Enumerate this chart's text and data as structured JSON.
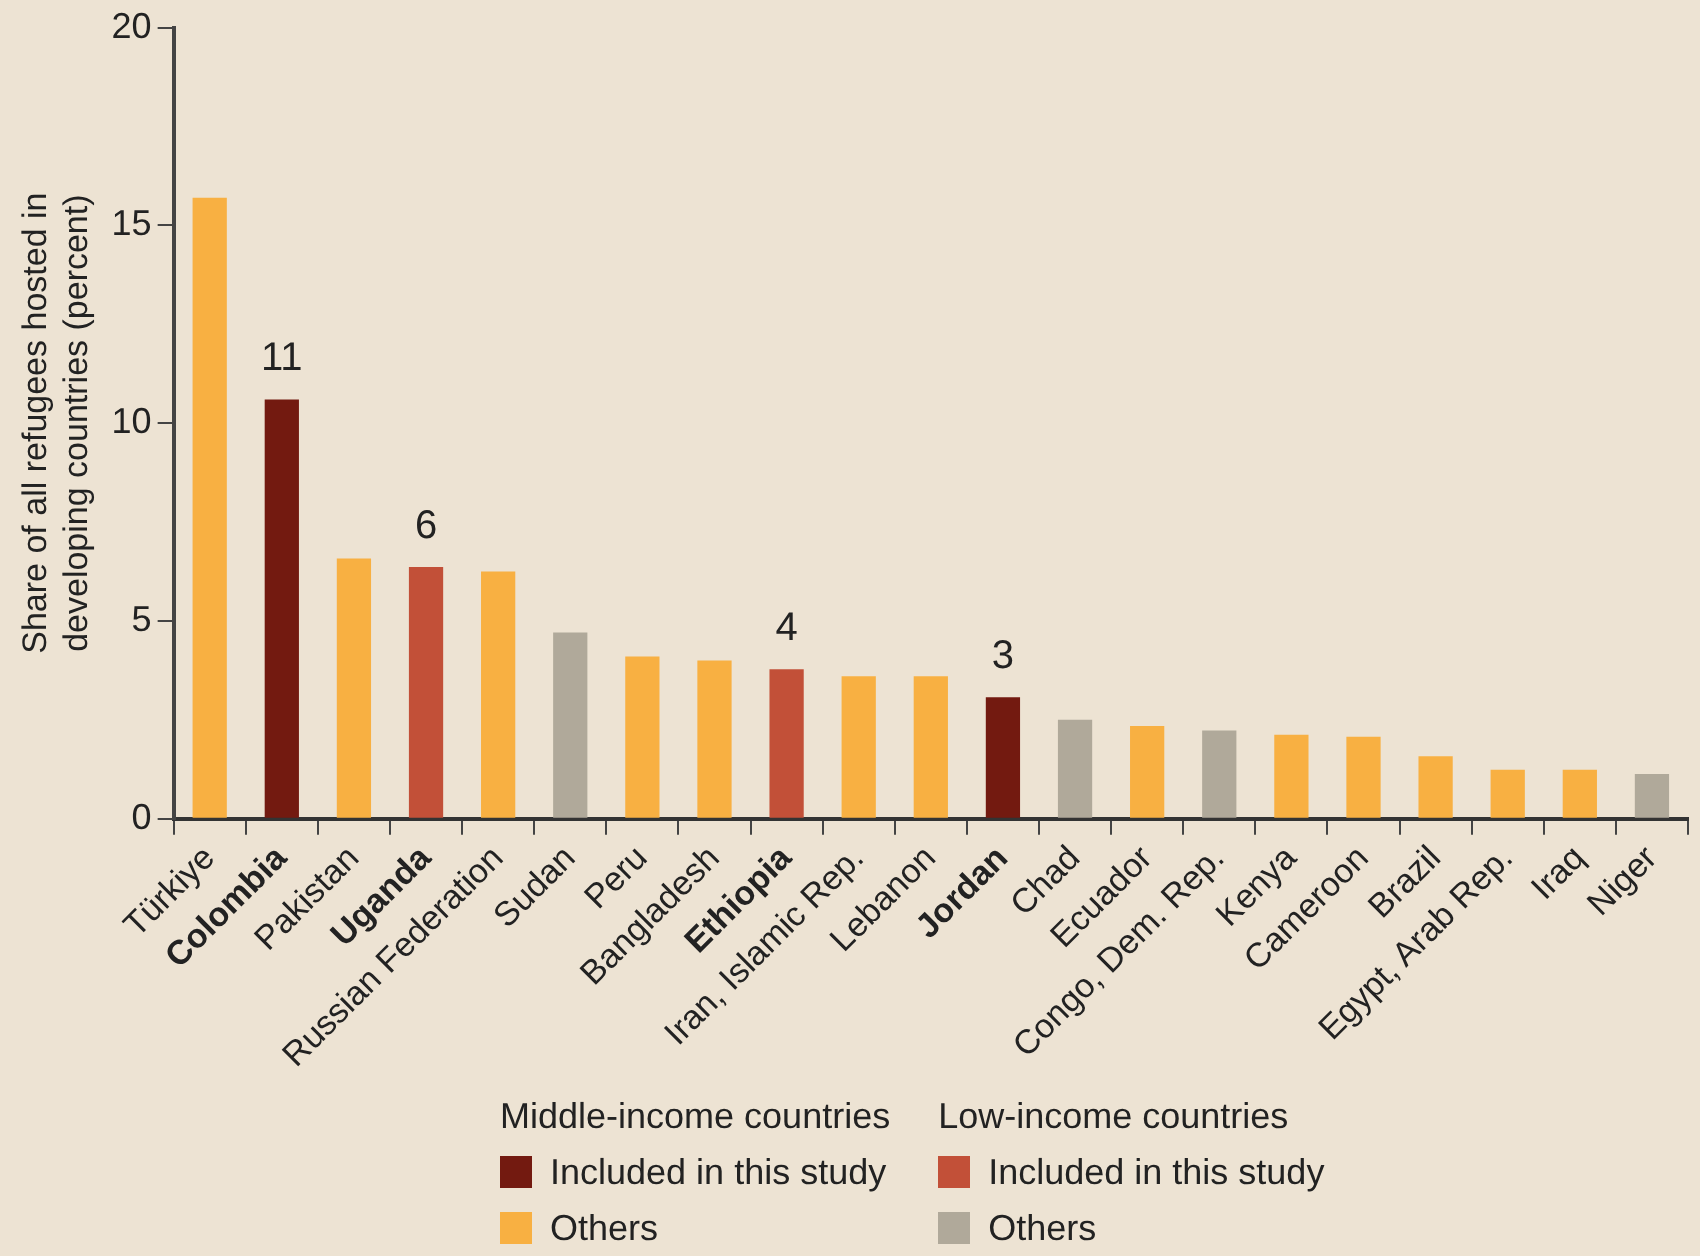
{
  "chart_data": {
    "type": "bar",
    "ylabel": "Share of all refugees hosted in developing countries (percent)",
    "categories": [
      "Türkiye",
      "Colombia",
      "Pakistan",
      "Uganda",
      "Russian Federation",
      "Sudan",
      "Peru",
      "Bangladesh",
      "Ethiopia",
      "Iran, Islamic Rep.",
      "Lebanon",
      "Jordan",
      "Chad",
      "Ecuador",
      "Congo, Dem. Rep.",
      "Kenya",
      "Cameroon",
      "Brazil",
      "Egypt, Arab Rep.",
      "Iraq",
      "Niger"
    ],
    "stacked": true,
    "series": [
      {
        "name": "Included in this study",
        "color": "#731a10",
        "values": [
          null,
          10.6,
          null,
          null,
          null,
          null,
          null,
          null,
          null,
          null,
          null,
          3.07,
          null,
          null,
          null,
          null,
          null,
          null,
          null,
          null,
          null
        ],
        "value_labels": [
          null,
          "11",
          null,
          null,
          null,
          null,
          null,
          null,
          null,
          null,
          null,
          "3",
          null,
          null,
          null,
          null,
          null,
          null,
          null,
          null,
          null
        ]
      },
      {
        "name": "Others",
        "color": "#f8b042",
        "values": [
          15.7,
          null,
          6.58,
          null,
          6.25,
          null,
          4.1,
          4.0,
          null,
          3.6,
          3.6,
          null,
          null,
          2.34,
          null,
          2.12,
          2.07,
          1.58,
          1.24,
          1.24,
          null
        ]
      },
      {
        "name": "Included in this study",
        "color": "#c25038",
        "values": [
          null,
          null,
          null,
          6.36,
          null,
          null,
          null,
          null,
          3.78,
          null,
          null,
          null,
          null,
          null,
          null,
          null,
          null,
          null,
          null,
          null,
          null
        ],
        "value_labels": [
          null,
          null,
          null,
          "6",
          null,
          null,
          null,
          null,
          "4",
          null,
          null,
          null,
          null,
          null,
          null,
          null,
          null,
          null,
          null,
          null,
          null
        ]
      },
      {
        "name": "Others",
        "color": "#b0a99a",
        "values": [
          null,
          null,
          null,
          null,
          null,
          4.71,
          null,
          null,
          null,
          null,
          null,
          null,
          2.5,
          null,
          2.23,
          null,
          null,
          null,
          null,
          null,
          1.13
        ]
      }
    ],
    "annotations": [
      "Middle-income countries",
      "Low-income countries"
    ],
    "ylim": [
      0,
      20
    ],
    "yticks": [
      0,
      5,
      10,
      15,
      20
    ],
    "grid": false,
    "legend": "bottom"
  }
}
